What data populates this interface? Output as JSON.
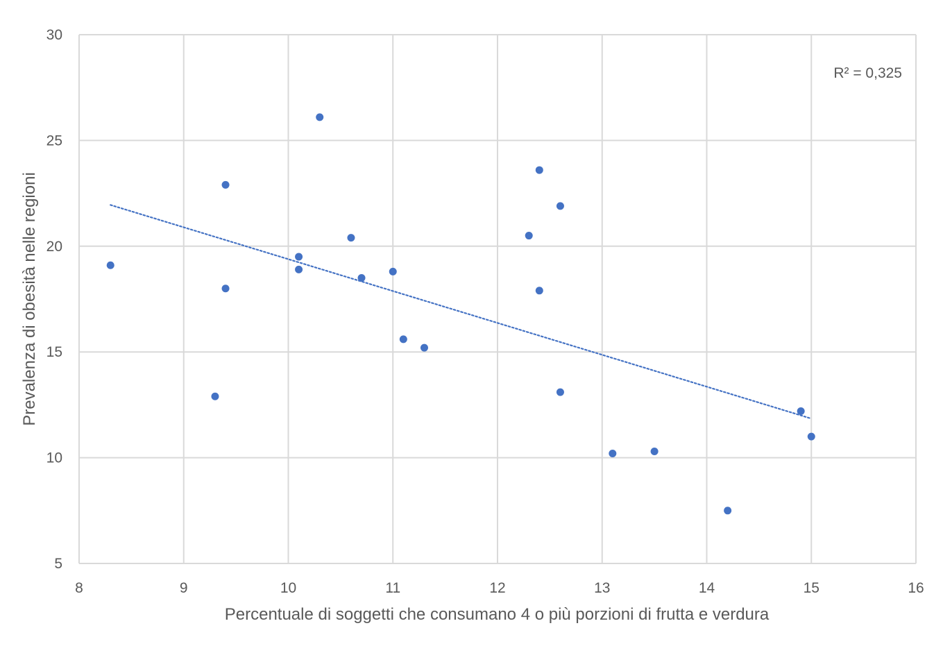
{
  "chart_data": {
    "type": "scatter",
    "xlabel": "Percentuale di soggetti che consumano 4 o più porzioni di frutta e verdura",
    "ylabel": "Prevalenza di obesità nelle regioni",
    "xlim": [
      8,
      16
    ],
    "ylim": [
      5,
      30
    ],
    "x_ticks": [
      8,
      9,
      10,
      11,
      12,
      13,
      14,
      15,
      16
    ],
    "y_ticks": [
      5,
      10,
      15,
      20,
      25,
      30
    ],
    "grid": true,
    "legend": "none",
    "colors": {
      "points": "#4472c4",
      "trendline": "#4472c4",
      "grid": "#d9d9d9",
      "text": "#595959"
    },
    "annotation": "R² = 0,325",
    "trendline": {
      "type": "linear",
      "style": "dotted",
      "x": [
        8.3,
        15.0
      ],
      "y": [
        21.95,
        11.85
      ]
    },
    "points": [
      {
        "x": 8.3,
        "y": 19.1
      },
      {
        "x": 9.3,
        "y": 12.9
      },
      {
        "x": 9.4,
        "y": 22.9
      },
      {
        "x": 9.4,
        "y": 18.0
      },
      {
        "x": 10.1,
        "y": 19.5
      },
      {
        "x": 10.1,
        "y": 18.9
      },
      {
        "x": 10.3,
        "y": 26.1
      },
      {
        "x": 10.6,
        "y": 20.4
      },
      {
        "x": 10.7,
        "y": 18.5
      },
      {
        "x": 11.0,
        "y": 18.8
      },
      {
        "x": 11.1,
        "y": 15.6
      },
      {
        "x": 11.3,
        "y": 15.2
      },
      {
        "x": 12.3,
        "y": 20.5
      },
      {
        "x": 12.4,
        "y": 23.6
      },
      {
        "x": 12.4,
        "y": 17.9
      },
      {
        "x": 12.6,
        "y": 21.9
      },
      {
        "x": 12.6,
        "y": 13.1
      },
      {
        "x": 13.1,
        "y": 10.2
      },
      {
        "x": 13.5,
        "y": 10.3
      },
      {
        "x": 14.2,
        "y": 7.5
      },
      {
        "x": 14.9,
        "y": 12.2
      },
      {
        "x": 15.0,
        "y": 11.0
      }
    ]
  }
}
